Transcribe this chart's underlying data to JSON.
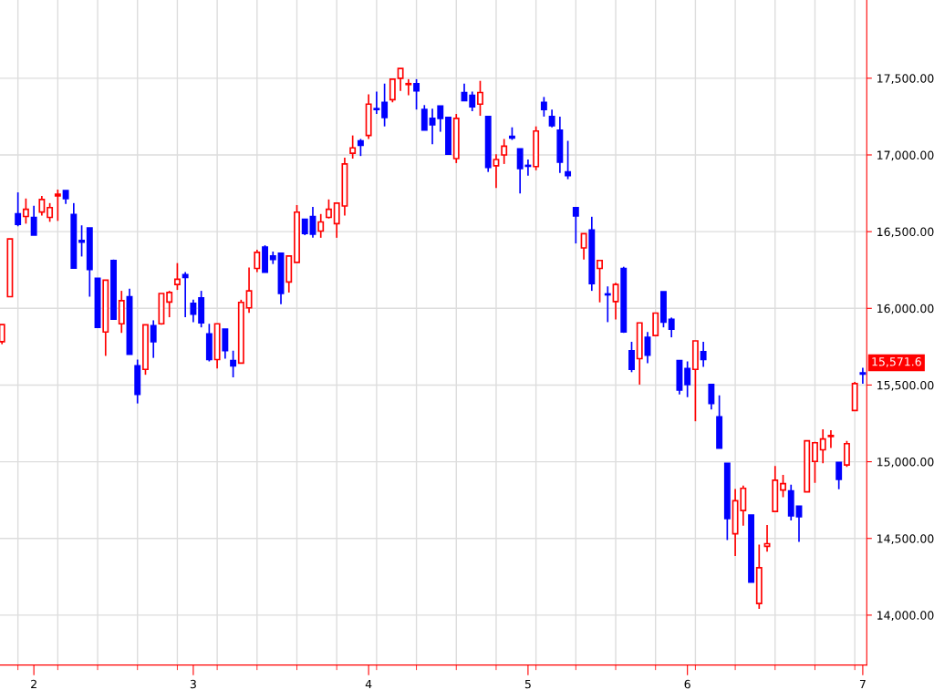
{
  "chart_data": {
    "type": "candlestick",
    "categories": [
      null,
      null,
      null,
      null,
      "2",
      null,
      null,
      null,
      null,
      null,
      null,
      null,
      null,
      null,
      null,
      null,
      null,
      null,
      null,
      null,
      null,
      null,
      null,
      null,
      "3",
      null,
      null,
      null,
      null,
      null,
      null,
      null,
      null,
      null,
      null,
      null,
      null,
      null,
      null,
      null,
      null,
      null,
      null,
      null,
      null,
      null,
      "4",
      null,
      null,
      null,
      null,
      null,
      null,
      null,
      null,
      null,
      null,
      null,
      null,
      null,
      null,
      null,
      null,
      null,
      null,
      null,
      "5",
      null,
      null,
      null,
      null,
      null,
      null,
      null,
      null,
      null,
      null,
      null,
      null,
      null,
      null,
      null,
      null,
      null,
      null,
      null,
      "6",
      null,
      null,
      null,
      null,
      null,
      null,
      null,
      null,
      null,
      null,
      null,
      null,
      null,
      null,
      null,
      null,
      null,
      null,
      null,
      null,
      null,
      "7"
    ],
    "ohlc": [
      [
        15783,
        15894,
        15766,
        15894
      ],
      [
        16076,
        16453,
        16076,
        16453
      ],
      [
        16616,
        16756,
        16535,
        16547
      ],
      [
        16599,
        16716,
        16552,
        16646
      ],
      [
        16593,
        16669,
        16477,
        16477
      ],
      [
        16628,
        16733,
        16605,
        16710
      ],
      [
        16593,
        16686,
        16564,
        16657
      ],
      [
        16733,
        16774,
        16570,
        16744
      ],
      [
        16767,
        16767,
        16680,
        16715
      ],
      [
        16611,
        16686,
        16262,
        16262
      ],
      [
        16442,
        16541,
        16338,
        16431
      ],
      [
        16524,
        16524,
        16076,
        16254
      ],
      [
        16196,
        16196,
        15876,
        15876
      ],
      [
        15846,
        16184,
        15690,
        16184
      ],
      [
        16312,
        16318,
        15930,
        15930
      ],
      [
        15899,
        16114,
        15840,
        16050
      ],
      [
        16076,
        16128,
        15701,
        15701
      ],
      [
        15625,
        15666,
        15380,
        15439
      ],
      [
        15602,
        15893,
        15567,
        15893
      ],
      [
        15887,
        15922,
        15677,
        15782
      ],
      [
        15899,
        16097,
        15893,
        16097
      ],
      [
        16041,
        16114,
        15942,
        16103
      ],
      [
        16155,
        16295,
        16120,
        16190
      ],
      [
        16219,
        16236,
        15942,
        16201
      ],
      [
        16033,
        16056,
        15910,
        15962
      ],
      [
        16068,
        16114,
        15876,
        15905
      ],
      [
        15834,
        15899,
        15654,
        15666
      ],
      [
        15666,
        15899,
        15608,
        15899
      ],
      [
        15864,
        15864,
        15672,
        15724
      ],
      [
        15660,
        15724,
        15550,
        15625
      ],
      [
        15643,
        16056,
        15643,
        16039
      ],
      [
        16003,
        16266,
        15971,
        16114
      ],
      [
        16260,
        16382,
        16236,
        16365
      ],
      [
        16399,
        16411,
        16236,
        16236
      ],
      [
        16341,
        16370,
        16289,
        16318
      ],
      [
        16359,
        16359,
        16027,
        16097
      ],
      [
        16172,
        16341,
        16103,
        16341
      ],
      [
        16300,
        16673,
        16300,
        16627
      ],
      [
        16581,
        16581,
        16477,
        16488
      ],
      [
        16599,
        16661,
        16460,
        16483
      ],
      [
        16504,
        16615,
        16460,
        16563
      ],
      [
        16593,
        16710,
        16586,
        16646
      ],
      [
        16552,
        16686,
        16460,
        16686
      ],
      [
        16667,
        16982,
        16605,
        16941
      ],
      [
        17011,
        17127,
        16976,
        17046
      ],
      [
        17092,
        17104,
        16993,
        17063
      ],
      [
        17127,
        17395,
        17104,
        17331
      ],
      [
        17302,
        17413,
        17267,
        17296
      ],
      [
        17343,
        17465,
        17186,
        17244
      ],
      [
        17360,
        17494,
        17343,
        17494
      ],
      [
        17500,
        17564,
        17418,
        17564
      ],
      [
        17459,
        17494,
        17389,
        17465
      ],
      [
        17465,
        17494,
        17296,
        17418
      ],
      [
        17296,
        17325,
        17162,
        17162
      ],
      [
        17238,
        17302,
        17069,
        17197
      ],
      [
        17319,
        17319,
        17151,
        17238
      ],
      [
        17244,
        17244,
        17005,
        17005
      ],
      [
        16976,
        17267,
        16947,
        17238
      ],
      [
        17407,
        17465,
        17354,
        17354
      ],
      [
        17389,
        17413,
        17285,
        17314
      ],
      [
        17331,
        17483,
        17255,
        17407
      ],
      [
        17250,
        17250,
        16889,
        16918
      ],
      [
        16929,
        17005,
        16784,
        16970
      ],
      [
        17000,
        17104,
        16941,
        17057
      ],
      [
        17121,
        17180,
        17098,
        17110
      ],
      [
        17040,
        17040,
        16749,
        16912
      ],
      [
        16932,
        16970,
        16865,
        16926
      ],
      [
        16924,
        17186,
        16900,
        17156
      ],
      [
        17343,
        17378,
        17250,
        17296
      ],
      [
        17250,
        17296,
        17180,
        17191
      ],
      [
        17162,
        17250,
        16883,
        16953
      ],
      [
        16889,
        17092,
        16842,
        16865
      ],
      [
        16656,
        16656,
        16423,
        16603
      ],
      [
        16394,
        16487,
        16318,
        16487
      ],
      [
        16510,
        16597,
        16114,
        16161
      ],
      [
        16260,
        16312,
        16039,
        16312
      ],
      [
        16094,
        16143,
        15910,
        16088
      ],
      [
        16044,
        16167,
        15928,
        16155
      ],
      [
        16260,
        16271,
        15840,
        15846
      ],
      [
        15724,
        15782,
        15584,
        15602
      ],
      [
        15672,
        15905,
        15503,
        15905
      ],
      [
        15811,
        15846,
        15643,
        15695
      ],
      [
        15823,
        15969,
        15817,
        15969
      ],
      [
        16108,
        16108,
        15876,
        15910
      ],
      [
        15928,
        15940,
        15811,
        15864
      ],
      [
        15660,
        15660,
        15439,
        15468
      ],
      [
        15608,
        15654,
        15421,
        15503
      ],
      [
        15602,
        15788,
        15264,
        15788
      ],
      [
        15718,
        15782,
        15619,
        15666
      ],
      [
        15503,
        15503,
        15340,
        15380
      ],
      [
        15293,
        15433,
        15089,
        15089
      ],
      [
        14990,
        14990,
        14490,
        14629
      ],
      [
        14530,
        14822,
        14385,
        14746
      ],
      [
        14682,
        14845,
        14583,
        14827
      ],
      [
        14653,
        14653,
        14216,
        14216
      ],
      [
        14076,
        14460,
        14041,
        14309
      ],
      [
        14449,
        14588,
        14414,
        14466
      ],
      [
        14676,
        14973,
        14676,
        14880
      ],
      [
        14816,
        14915,
        14769,
        14857
      ],
      [
        14810,
        14851,
        14618,
        14647
      ],
      [
        14711,
        14711,
        14478,
        14641
      ],
      [
        14804,
        15136,
        14804,
        15136
      ],
      [
        15002,
        15130,
        14862,
        15124
      ],
      [
        15078,
        15212,
        14990,
        15148
      ],
      [
        15165,
        15206,
        15089,
        15171
      ],
      [
        14996,
        14996,
        14821,
        14885
      ],
      [
        14979,
        15136,
        14967,
        15118
      ],
      [
        15334,
        15520,
        15334,
        15509
      ],
      [
        15580,
        15613,
        15509,
        15571.6
      ]
    ],
    "colors": [
      "#ff0000",
      "#ff0000",
      "#0000ff",
      "#ff0000",
      "#0000ff",
      "#ff0000",
      "#ff0000",
      "#ff0000",
      "#0000ff",
      "#0000ff",
      "#0000ff",
      "#0000ff",
      "#0000ff",
      "#ff0000",
      "#0000ff",
      "#ff0000",
      "#0000ff",
      "#0000ff",
      "#ff0000",
      "#0000ff",
      "#ff0000",
      "#ff0000",
      "#ff0000",
      "#0000ff",
      "#0000ff",
      "#0000ff",
      "#0000ff",
      "#ff0000",
      "#0000ff",
      "#0000ff",
      "#ff0000",
      "#ff0000",
      "#ff0000",
      "#0000ff",
      "#0000ff",
      "#0000ff",
      "#ff0000",
      "#ff0000",
      "#0000ff",
      "#0000ff",
      "#ff0000",
      "#ff0000",
      "#ff0000",
      "#ff0000",
      "#ff0000",
      "#0000ff",
      "#ff0000",
      "#0000ff",
      "#0000ff",
      "#ff0000",
      "#ff0000",
      "#ff0000",
      "#0000ff",
      "#0000ff",
      "#0000ff",
      "#0000ff",
      "#0000ff",
      "#ff0000",
      "#0000ff",
      "#0000ff",
      "#ff0000",
      "#0000ff",
      "#ff0000",
      "#ff0000",
      "#0000ff",
      "#0000ff",
      "#0000ff",
      "#ff0000",
      "#0000ff",
      "#0000ff",
      "#0000ff",
      "#0000ff",
      "#0000ff",
      "#ff0000",
      "#0000ff",
      "#ff0000",
      "#0000ff",
      "#ff0000",
      "#0000ff",
      "#0000ff",
      "#ff0000",
      "#0000ff",
      "#ff0000",
      "#0000ff",
      "#0000ff",
      "#0000ff",
      "#0000ff",
      "#ff0000",
      "#0000ff",
      "#0000ff",
      "#0000ff",
      "#0000ff",
      "#ff0000",
      "#ff0000",
      "#0000ff",
      "#ff0000",
      "#ff0000",
      "#ff0000",
      "#ff0000",
      "#0000ff",
      "#0000ff",
      "#ff0000",
      "#ff0000",
      "#ff0000",
      "#ff0000",
      "#0000ff",
      "#ff0000",
      "#ff0000",
      "#0000ff"
    ],
    "ylim": [
      13675,
      18010
    ],
    "yticks": [
      {
        "value": 14000,
        "label": "14,000.00"
      },
      {
        "value": 14500,
        "label": "14,500.00"
      },
      {
        "value": 15000,
        "label": "15,000.00"
      },
      {
        "value": 15500,
        "label": "15,500.00"
      },
      {
        "value": 16000,
        "label": "16,000.00"
      },
      {
        "value": 16500,
        "label": "16,500.00"
      },
      {
        "value": 17000,
        "label": "17,000.00"
      },
      {
        "value": 17500,
        "label": "17,500.00"
      }
    ],
    "grid": true,
    "annotations": [
      "15,571.6"
    ]
  }
}
